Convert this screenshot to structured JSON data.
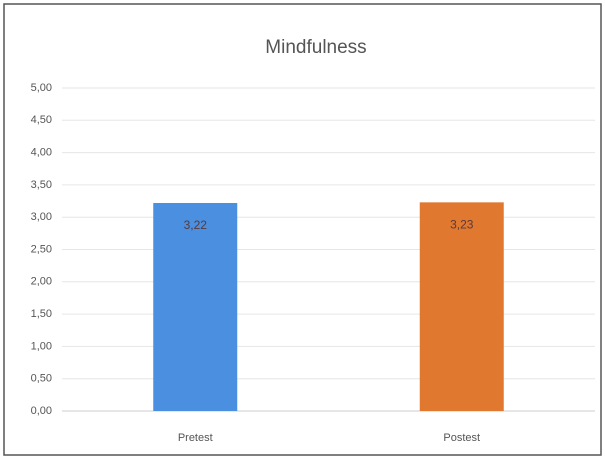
{
  "chart_data": {
    "type": "bar",
    "title": "Mindfulness",
    "categories": [
      "Pretest",
      "Postest"
    ],
    "values": [
      3.22,
      3.23
    ],
    "value_labels": [
      "3,22",
      "3,23"
    ],
    "colors": [
      "#4a8fe0",
      "#e0782f"
    ],
    "ylim": [
      0,
      5
    ],
    "yticks": [
      {
        "value": 0,
        "label": "0,00"
      },
      {
        "value": 0.5,
        "label": "0,50"
      },
      {
        "value": 1,
        "label": "1,00"
      },
      {
        "value": 1.5,
        "label": "1,50"
      },
      {
        "value": 2,
        "label": "2,00"
      },
      {
        "value": 2.5,
        "label": "2,50"
      },
      {
        "value": 3,
        "label": "3,00"
      },
      {
        "value": 3.5,
        "label": "3,50"
      },
      {
        "value": 4,
        "label": "4,00"
      },
      {
        "value": 4.5,
        "label": "4,50"
      },
      {
        "value": 5,
        "label": "5,00"
      }
    ],
    "grid": true
  }
}
